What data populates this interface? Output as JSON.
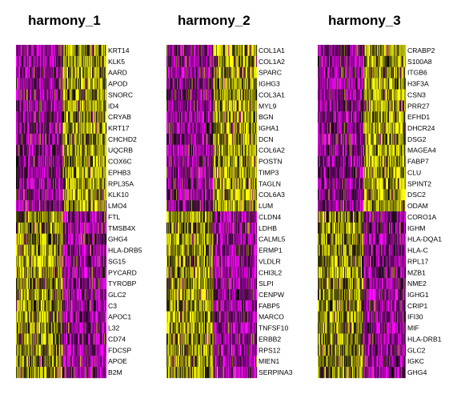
{
  "chart_data": [
    {
      "type": "heatmap",
      "title": "harmony_1",
      "genes": [
        "KRT14",
        "KLK5",
        "AARD",
        "APOD",
        "SNORC",
        "ID4",
        "CRYAB",
        "KRT17",
        "CHCHD2",
        "UQCRB",
        "COX6C",
        "EPHB3",
        "RPL35A",
        "KLK10",
        "LMO4",
        "FTL",
        "TMSB4X",
        "GHG4",
        "HLA-DRB5",
        "SG15",
        "PYCARD",
        "TYROBP",
        "GLC2",
        "C3",
        "APOC1",
        "L32",
        "CD74",
        "FDCSP",
        "APOE",
        "B2M"
      ],
      "n_positive": 15,
      "group_split": 0.52,
      "colors": {
        "low": "#ff00ff",
        "mid": "#000000",
        "high": "#ffff00"
      }
    },
    {
      "type": "heatmap",
      "title": "harmony_2",
      "genes": [
        "COL1A1",
        "COL1A2",
        "SPARC",
        "IGHG3",
        "COL3A1",
        "MYL9",
        "BGN",
        "IGHA1",
        "DCN",
        "COL6A2",
        "POSTN",
        "TIMP3",
        "TAGLN",
        "COL6A3",
        "LUM",
        "CLDN4",
        "LDHB",
        "CALML5",
        "ERMP1",
        "VLDLR",
        "CHI3L2",
        "SLPI",
        "CENPW",
        "FABP5",
        "MARCO",
        "TNFSF10",
        "ERBB2",
        "RPS12",
        "MIEN1",
        "SERPINA3"
      ],
      "n_positive": 15,
      "group_split": 0.52,
      "colors": {
        "low": "#ff00ff",
        "mid": "#000000",
        "high": "#ffff00"
      }
    },
    {
      "type": "heatmap",
      "title": "harmony_3",
      "genes": [
        "CRABP2",
        "S100A8",
        "ITGB6",
        "H3F3A",
        "CSN3",
        "PRR27",
        "EFHD1",
        "DHCR24",
        "DSG2",
        "MAGEA4",
        "FABP7",
        "CLU",
        "SPINT2",
        "DSC2",
        "ODAM",
        "CORO1A",
        "IGHM",
        "HLA-DQA1",
        "HLA-C",
        "RPL17",
        "MZB1",
        "NME2",
        "IGHG1",
        "CRIP1",
        "IFI30",
        "MIF",
        "HLA-DRB1",
        "GLC2",
        "IGKC",
        "GHG4"
      ],
      "n_positive": 15,
      "group_split": 0.52,
      "colors": {
        "low": "#ff00ff",
        "mid": "#000000",
        "high": "#ffff00"
      }
    }
  ]
}
